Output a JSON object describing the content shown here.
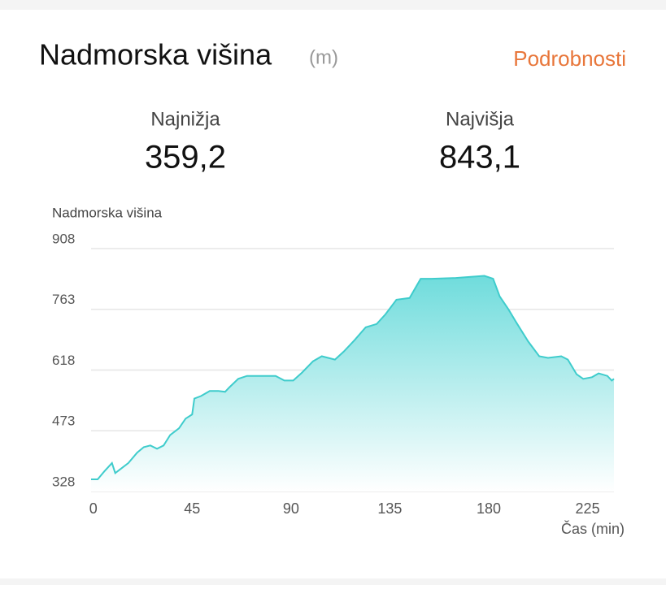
{
  "header": {
    "title": "Nadmorska višina",
    "unit": "(m)",
    "link": "Podrobnosti"
  },
  "stats": [
    {
      "label": "Najnižja",
      "value": "359,2"
    },
    {
      "label": "Najvišja",
      "value": "843,1"
    }
  ],
  "chart_data": {
    "type": "area",
    "y_label": "Nadmorska višina",
    "x_label": "Čas (min)",
    "x": [
      -1,
      2,
      5,
      8.5,
      10,
      12,
      16,
      20,
      23,
      26,
      29,
      32,
      35,
      39,
      42,
      45,
      46,
      49,
      53,
      57,
      60,
      62,
      66,
      70,
      75,
      83,
      87,
      91,
      95,
      100,
      104,
      110,
      114,
      119,
      124,
      129,
      133,
      138,
      144,
      149,
      154,
      165,
      178,
      182,
      185,
      189,
      193,
      198,
      203,
      207,
      213,
      216,
      220,
      223,
      227,
      230,
      234,
      236,
      237
    ],
    "values": [
      357,
      357,
      376,
      396,
      372,
      380,
      396,
      421,
      434,
      438,
      430,
      438,
      463,
      479,
      502,
      512,
      550,
      556,
      568,
      568,
      566,
      577,
      597,
      604,
      604,
      604,
      593,
      593,
      612,
      639,
      651,
      643,
      662,
      690,
      720,
      728,
      751,
      786,
      790,
      836,
      836,
      838,
      843,
      836,
      794,
      763,
      728,
      686,
      651,
      647,
      651,
      643,
      608,
      597,
      601,
      610,
      604,
      593,
      597
    ],
    "color": "#3fcccc",
    "xlim": [
      -1,
      237
    ],
    "xticks": [
      0,
      45,
      90,
      135,
      180,
      225
    ],
    "ylim": [
      328,
      908
    ],
    "yticks": [
      328,
      473,
      618,
      763,
      908
    ],
    "grid": true
  }
}
